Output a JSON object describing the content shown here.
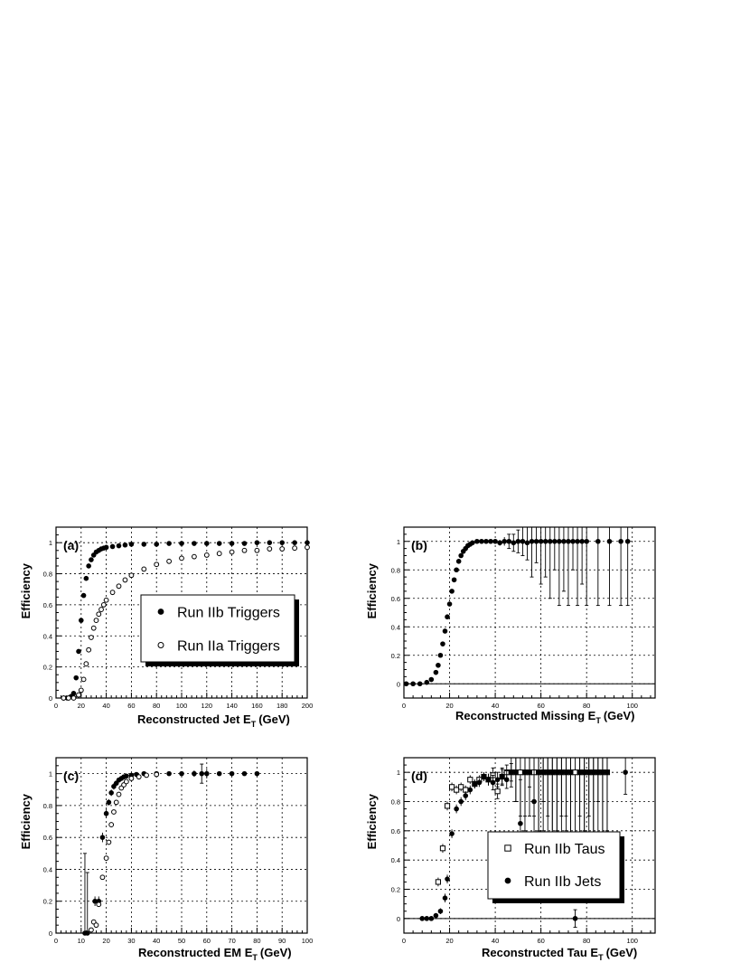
{
  "chart_data": [
    {
      "type": "scatter",
      "panel_label": "(a)",
      "xlabel": "Reconstructed Jet E",
      "xlabel_sub": "T",
      "xlabel_unit": "(GeV)",
      "ylabel": "Efficiency",
      "xlim": [
        0,
        200
      ],
      "ylim": [
        0,
        1.1
      ],
      "xticks": [
        0,
        20,
        40,
        60,
        80,
        100,
        120,
        140,
        160,
        180,
        200
      ],
      "yticks": [
        0,
        0.2,
        0.4,
        0.6,
        0.8,
        1
      ],
      "grid": true,
      "legend_position": "center-right",
      "series": [
        {
          "name": "Run IIb Triggers",
          "marker": "filled-circle",
          "x": [
            6,
            9,
            12,
            14,
            16,
            18,
            20,
            22,
            24,
            26,
            28,
            30,
            32,
            34,
            36,
            38,
            40,
            45,
            50,
            55,
            60,
            70,
            80,
            90,
            100,
            110,
            120,
            130,
            140,
            150,
            160,
            170,
            180,
            190,
            200
          ],
          "y": [
            0,
            0,
            0.01,
            0.03,
            0.13,
            0.3,
            0.5,
            0.66,
            0.77,
            0.85,
            0.89,
            0.92,
            0.94,
            0.95,
            0.96,
            0.965,
            0.97,
            0.975,
            0.98,
            0.985,
            0.99,
            0.99,
            0.99,
            0.995,
            0.995,
            0.995,
            0.995,
            0.995,
            0.995,
            0.995,
            1.0,
            1.0,
            1.0,
            1.0,
            1.0
          ]
        },
        {
          "name": "Run IIa Triggers",
          "marker": "open-circle",
          "x": [
            6,
            10,
            14,
            18,
            20,
            22,
            24,
            26,
            28,
            30,
            32,
            34,
            36,
            38,
            40,
            45,
            50,
            55,
            60,
            70,
            80,
            90,
            100,
            110,
            120,
            130,
            140,
            150,
            160,
            170,
            180,
            190,
            200
          ],
          "y": [
            0,
            0,
            0,
            0.02,
            0.05,
            0.12,
            0.22,
            0.31,
            0.39,
            0.45,
            0.5,
            0.54,
            0.57,
            0.6,
            0.63,
            0.68,
            0.72,
            0.76,
            0.79,
            0.83,
            0.86,
            0.88,
            0.9,
            0.91,
            0.92,
            0.93,
            0.94,
            0.95,
            0.95,
            0.96,
            0.96,
            0.965,
            0.97
          ]
        }
      ]
    },
    {
      "type": "scatter",
      "panel_label": "(b)",
      "xlabel": "Reconstructed Missing E",
      "xlabel_sub": "T",
      "xlabel_unit": "(GeV)",
      "ylabel": "Efficiency",
      "xlim": [
        0,
        110
      ],
      "ylim": [
        -0.1,
        1.1
      ],
      "xticks": [
        0,
        20,
        40,
        60,
        80,
        100
      ],
      "yticks": [
        0,
        0.2,
        0.4,
        0.6,
        0.8,
        1
      ],
      "grid": true,
      "series": [
        {
          "marker": "filled-circle",
          "x": [
            1,
            4,
            7,
            10,
            12,
            14,
            15,
            16,
            17,
            18,
            19,
            20,
            21,
            22,
            23,
            24,
            25,
            26,
            27,
            28,
            29,
            30,
            32,
            34,
            36,
            38,
            40,
            42,
            44,
            46,
            48,
            50,
            52,
            54,
            56,
            58,
            60,
            62,
            64,
            66,
            68,
            70,
            72,
            74,
            76,
            78,
            80,
            85,
            90,
            95,
            98
          ],
          "y": [
            0,
            0,
            0,
            0.01,
            0.03,
            0.08,
            0.13,
            0.2,
            0.28,
            0.37,
            0.47,
            0.56,
            0.65,
            0.73,
            0.8,
            0.86,
            0.9,
            0.93,
            0.95,
            0.97,
            0.98,
            0.99,
            1,
            1,
            1,
            1,
            1,
            0.99,
            1,
            1,
            0.99,
            1,
            1,
            0.99,
            1,
            1,
            1,
            1,
            1,
            1,
            1,
            1,
            1,
            1,
            1,
            1,
            1,
            1,
            1,
            1,
            1
          ],
          "err": [
            0,
            0,
            0,
            0.01,
            0.01,
            0.01,
            0.01,
            0.01,
            0.01,
            0.01,
            0.01,
            0.01,
            0.01,
            0.01,
            0.01,
            0.01,
            0.01,
            0.01,
            0.01,
            0.01,
            0.01,
            0.01,
            0.01,
            0.01,
            0.01,
            0.01,
            0.01,
            0.02,
            0.03,
            0.05,
            0.06,
            0.08,
            0.1,
            0.12,
            0.25,
            0.15,
            0.3,
            0.25,
            0.4,
            0.2,
            0.45,
            0.35,
            0.45,
            0.2,
            0.45,
            0.3,
            0.45,
            0.45,
            0.45,
            0.45,
            0.45
          ]
        }
      ]
    },
    {
      "type": "scatter",
      "panel_label": "(c)",
      "xlabel": "Reconstructed EM E",
      "xlabel_sub": "T",
      "xlabel_unit": "(GeV)",
      "ylabel": "Efficiency",
      "xlim": [
        0,
        100
      ],
      "ylim": [
        0,
        1.1
      ],
      "xticks": [
        0,
        10,
        20,
        30,
        40,
        50,
        60,
        70,
        80,
        90,
        100
      ],
      "yticks": [
        0,
        0.2,
        0.4,
        0.6,
        0.8,
        1
      ],
      "grid": true,
      "series": [
        {
          "marker": "filled-circle",
          "x": [
            11.5,
            12.5,
            15.5,
            17,
            18.5,
            20,
            21,
            22,
            23,
            24,
            25,
            26,
            27,
            28,
            30,
            32,
            35,
            40,
            45,
            50,
            55,
            58,
            60,
            65,
            70,
            75,
            80
          ],
          "y": [
            0,
            0,
            0.2,
            0.2,
            0.6,
            0.75,
            0.82,
            0.88,
            0.92,
            0.94,
            0.96,
            0.97,
            0.98,
            0.985,
            0.99,
            0.995,
            1,
            1,
            1,
            1,
            1,
            1,
            1,
            1,
            1,
            1,
            1
          ],
          "err": [
            0.5,
            0.38,
            0.03,
            0.03,
            0.03,
            0.03,
            0.02,
            0.02,
            0.02,
            0.01,
            0.01,
            0.01,
            0.01,
            0.01,
            0.01,
            0.01,
            0.01,
            0.01,
            0.01,
            0.01,
            0.02,
            0.06,
            0.03,
            0.01,
            0.01,
            0.01,
            0.01
          ]
        },
        {
          "marker": "open-circle",
          "x": [
            14,
            15,
            16,
            17,
            18.5,
            20,
            21,
            22,
            23,
            24,
            25,
            26,
            27,
            28,
            30,
            33,
            36,
            40
          ],
          "y": [
            0.02,
            0.07,
            0.05,
            0.18,
            0.35,
            0.47,
            0.57,
            0.68,
            0.76,
            0.82,
            0.87,
            0.91,
            0.93,
            0.95,
            0.97,
            0.98,
            0.99,
            0.995
          ]
        }
      ]
    },
    {
      "type": "scatter",
      "panel_label": "(d)",
      "xlabel": "Reconstructed Tau E",
      "xlabel_sub": "T",
      "xlabel_unit": "(GeV)",
      "ylabel": "Efficiency",
      "xlim": [
        0,
        110
      ],
      "ylim": [
        -0.1,
        1.1
      ],
      "xticks": [
        0,
        20,
        40,
        60,
        80,
        100
      ],
      "yticks": [
        0,
        0.2,
        0.4,
        0.6,
        0.8,
        1
      ],
      "grid": true,
      "legend_position": "center-right",
      "series": [
        {
          "name": "Run IIb Taus",
          "marker": "open-square",
          "x": [
            15,
            17,
            19,
            21,
            23,
            25,
            27,
            29,
            31,
            33,
            35,
            37,
            39,
            41,
            43,
            45,
            47,
            49,
            51,
            53,
            55,
            57,
            59,
            61,
            63,
            65,
            67,
            69,
            71,
            73,
            75,
            77,
            79,
            81,
            83,
            85,
            87,
            89
          ],
          "y": [
            0.25,
            0.48,
            0.77,
            0.9,
            0.88,
            0.9,
            0.88,
            0.95,
            0.92,
            0.95,
            0.97,
            0.95,
            0.98,
            0.87,
            0.97,
            1,
            1,
            1,
            1,
            1,
            1,
            1,
            1,
            1,
            1,
            1,
            1,
            1,
            1,
            1,
            1,
            1,
            1,
            1,
            1,
            1,
            1,
            1
          ],
          "err": [
            0.03,
            0.03,
            0.03,
            0.03,
            0.03,
            0.03,
            0.03,
            0.03,
            0.03,
            0.03,
            0.03,
            0.04,
            0.05,
            0.05,
            0.06,
            0.05,
            0.06,
            0.2,
            0.3,
            0.4,
            0.1,
            0.3,
            0.5,
            0.2,
            0.3,
            0.5,
            0.5,
            0.3,
            0.4,
            0.5,
            0.5,
            0.3,
            0.5,
            0.3,
            0.5,
            0.2,
            0.5,
            0.4
          ]
        },
        {
          "name": "Run IIb Jets",
          "marker": "filled-circle",
          "x": [
            8,
            10,
            12,
            14,
            16,
            18,
            19,
            21,
            23,
            25,
            27,
            29,
            31,
            33,
            35,
            37,
            39,
            41,
            43,
            45,
            47,
            49,
            51,
            53,
            55,
            57,
            59,
            61,
            63,
            65,
            67,
            69,
            71,
            73,
            75,
            77,
            79,
            81,
            83,
            85,
            87,
            89,
            97
          ],
          "y": [
            0,
            0,
            0,
            0.02,
            0.05,
            0.14,
            0.27,
            0.58,
            0.75,
            0.8,
            0.84,
            0.88,
            0.92,
            0.93,
            0.97,
            0.95,
            0.93,
            0.95,
            0.97,
            0.95,
            1,
            1,
            0.65,
            1,
            1,
            0.8,
            1,
            1,
            1,
            1,
            1,
            1,
            1,
            1,
            0,
            1,
            1,
            1,
            1,
            1,
            1,
            1,
            1
          ],
          "err": [
            0,
            0,
            0,
            0.01,
            0.02,
            0.03,
            0.03,
            0.03,
            0.03,
            0.03,
            0.03,
            0.03,
            0.03,
            0.03,
            0.03,
            0.04,
            0.05,
            0.05,
            0.05,
            0.06,
            0.1,
            0.2,
            0.3,
            0.3,
            0.3,
            0.3,
            0.4,
            0.4,
            0.5,
            0.5,
            0.4,
            0.5,
            0.3,
            0.5,
            0.06,
            0.5,
            0.4,
            0.5,
            0.5,
            0.5,
            0.5,
            0.5,
            0.15
          ]
        }
      ]
    }
  ]
}
